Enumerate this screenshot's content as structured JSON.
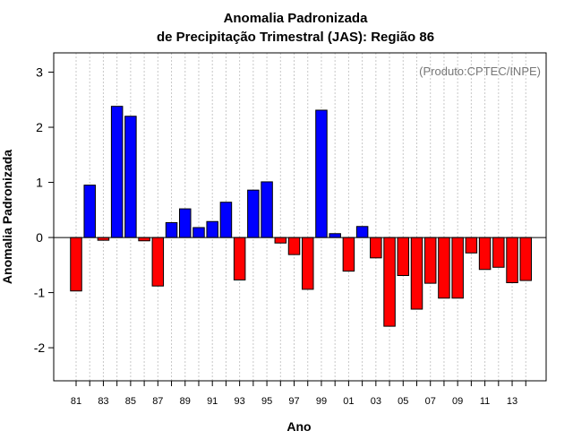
{
  "chart_data": {
    "type": "bar",
    "title": "Anomalia Padronizada",
    "subtitle": "de Precipitação Trimestral (JAS): Região 86",
    "xlabel": "Ano",
    "ylabel": "Anomalia Padronizada",
    "annotation": "(Produto:CPTEC/INPE)",
    "ylim": [
      -2.6,
      3.35
    ],
    "yticks": [
      -2,
      -1,
      0,
      1,
      2,
      3
    ],
    "positive_color": "#0000ff",
    "negative_color": "#ff0000",
    "grid": "vertical dotted",
    "categories": [
      "1981",
      "1982",
      "1983",
      "1984",
      "1985",
      "1986",
      "1987",
      "1988",
      "1989",
      "1990",
      "1991",
      "1992",
      "1993",
      "1994",
      "1995",
      "1996",
      "1997",
      "1998",
      "1999",
      "2000",
      "2001",
      "2002",
      "2003",
      "2004",
      "2005",
      "2006",
      "2007",
      "2008",
      "2009",
      "2010",
      "2011",
      "2012",
      "2013",
      "2014"
    ],
    "xtick_labels": [
      "81",
      "",
      "83",
      "",
      "85",
      "",
      "87",
      "",
      "89",
      "",
      "91",
      "",
      "93",
      "",
      "95",
      "",
      "97",
      "",
      "99",
      "",
      "01",
      "",
      "03",
      "",
      "05",
      "",
      "07",
      "",
      "09",
      "",
      "11",
      "",
      "13",
      ""
    ],
    "values": [
      -0.97,
      0.95,
      -0.05,
      2.38,
      2.2,
      -0.06,
      -0.88,
      0.27,
      0.52,
      0.18,
      0.29,
      0.64,
      -0.77,
      0.86,
      1.01,
      -0.1,
      -0.31,
      -0.94,
      2.31,
      0.07,
      -0.61,
      0.2,
      -0.37,
      -1.61,
      -0.69,
      -1.3,
      -0.83,
      -1.1,
      -1.1,
      -0.28,
      -0.58,
      -0.54,
      -0.82,
      -0.78
    ]
  }
}
